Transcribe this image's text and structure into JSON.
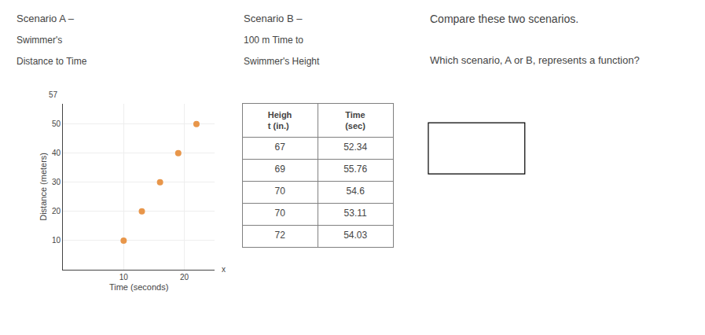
{
  "chart_data": [
    {
      "type": "scatter",
      "title": "Scenario A –",
      "subtitle": [
        "Swimmer's",
        "Distance to Time"
      ],
      "x": [
        10,
        13,
        16,
        19,
        22
      ],
      "values": [
        10,
        20,
        30,
        40,
        50
      ],
      "xlabel": "Time (seconds)",
      "ylabel": "Distance (meters)",
      "xlim": [
        0,
        25
      ],
      "ylim": [
        0,
        57
      ],
      "xticks": [
        10,
        20
      ],
      "yticks": [
        10,
        20,
        30,
        40,
        50
      ],
      "grid": true,
      "color": "#e8964a",
      "annotations": [
        "57",
        "x"
      ]
    },
    {
      "type": "table",
      "title": "Scenario B –",
      "subtitle": [
        "100 m Time to",
        "Swimmer's Height"
      ],
      "columns": [
        "Heigh\nt (in.)",
        "Time\n(sec)"
      ],
      "rows": [
        [
          67,
          "52.34"
        ],
        [
          69,
          "55.76"
        ],
        [
          70,
          "54.6"
        ],
        [
          70,
          "53.11"
        ],
        [
          72,
          "54.03"
        ]
      ]
    },
    {
      "type": "text",
      "title": "Compare these two scenarios.",
      "annotations": [
        "Which scenario, A or B, represents a function?"
      ]
    }
  ]
}
